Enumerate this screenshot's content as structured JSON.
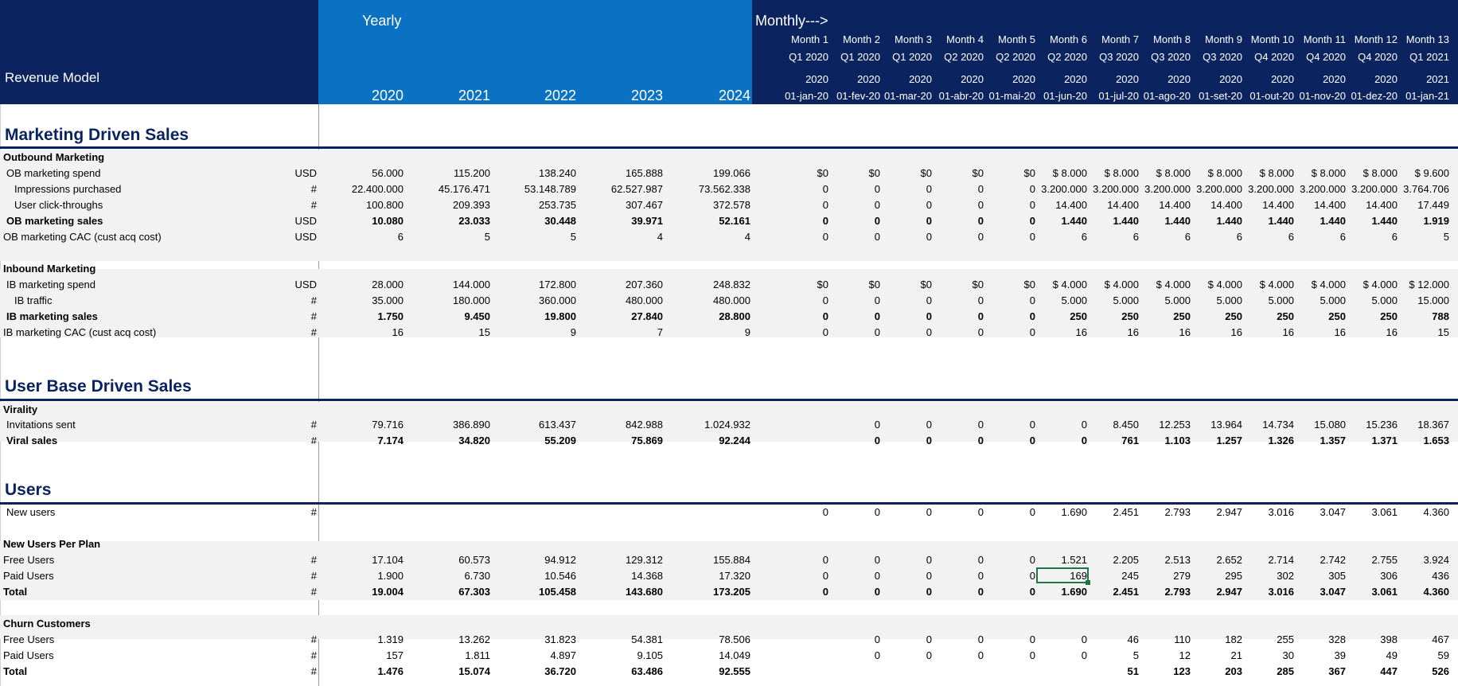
{
  "header": {
    "model_title": "Revenue Model",
    "yearly_label": "Yearly",
    "monthly_label": "Monthly--->",
    "years": [
      "2020",
      "2021",
      "2022",
      "2023",
      "2024"
    ],
    "months": [
      {
        "month": "Month 1",
        "quarter": "Q1 2020",
        "year": "2020",
        "date": "01-jan-20"
      },
      {
        "month": "Month 2",
        "quarter": "Q1 2020",
        "year": "2020",
        "date": "01-fev-20"
      },
      {
        "month": "Month 3",
        "quarter": "Q1 2020",
        "year": "2020",
        "date": "01-mar-20"
      },
      {
        "month": "Month 4",
        "quarter": "Q2 2020",
        "year": "2020",
        "date": "01-abr-20"
      },
      {
        "month": "Month 5",
        "quarter": "Q2 2020",
        "year": "2020",
        "date": "01-mai-20"
      },
      {
        "month": "Month 6",
        "quarter": "Q2 2020",
        "year": "2020",
        "date": "01-jun-20"
      },
      {
        "month": "Month 7",
        "quarter": "Q3 2020",
        "year": "2020",
        "date": "01-jul-20"
      },
      {
        "month": "Month 8",
        "quarter": "Q3 2020",
        "year": "2020",
        "date": "01-ago-20"
      },
      {
        "month": "Month 9",
        "quarter": "Q3 2020",
        "year": "2020",
        "date": "01-set-20"
      },
      {
        "month": "Month 10",
        "quarter": "Q4 2020",
        "year": "2020",
        "date": "01-out-20"
      },
      {
        "month": "Month 11",
        "quarter": "Q4 2020",
        "year": "2020",
        "date": "01-nov-20"
      },
      {
        "month": "Month 12",
        "quarter": "Q4 2020",
        "year": "2020",
        "date": "01-dez-20"
      },
      {
        "month": "Month 13",
        "quarter": "Q1 2021",
        "year": "2021",
        "date": "01-jan-21"
      }
    ]
  },
  "sections": [
    {
      "title": "Marketing Driven Sales"
    },
    {
      "title": "User Base Driven Sales"
    },
    {
      "title": "Users"
    }
  ],
  "subheads": [
    {
      "label": "Outbound Marketing"
    },
    {
      "label": "Inbound Marketing"
    },
    {
      "label": "Virality"
    },
    {
      "label": "New Users Per Plan"
    },
    {
      "label": "Churn Customers"
    }
  ],
  "rows": [
    {
      "label": "OB marketing spend",
      "unit": "USD",
      "bold": false,
      "indent": 8,
      "yearly": [
        "56.000",
        "115.200",
        "138.240",
        "165.888",
        "199.066"
      ],
      "monthly": [
        "$0",
        "$0",
        "$0",
        "$0",
        "$0",
        "$ 8.000",
        "$ 8.000",
        "$ 8.000",
        "$ 8.000",
        "$ 8.000",
        "$ 8.000",
        "$ 8.000",
        "$ 9.600"
      ]
    },
    {
      "label": "Impressions purchased",
      "unit": "#",
      "bold": false,
      "indent": 18,
      "yearly": [
        "22.400.000",
        "45.176.471",
        "53.148.789",
        "62.527.987",
        "73.562.338"
      ],
      "monthly": [
        "0",
        "0",
        "0",
        "0",
        "0",
        "3.200.000",
        "3.200.000",
        "3.200.000",
        "3.200.000",
        "3.200.000",
        "3.200.000",
        "3.200.000",
        "3.764.706"
      ]
    },
    {
      "label": "User click-throughs",
      "unit": "#",
      "bold": false,
      "indent": 18,
      "yearly": [
        "100.800",
        "209.393",
        "253.735",
        "307.467",
        "372.578"
      ],
      "monthly": [
        "0",
        "0",
        "0",
        "0",
        "0",
        "14.400",
        "14.400",
        "14.400",
        "14.400",
        "14.400",
        "14.400",
        "14.400",
        "17.449"
      ]
    },
    {
      "label": "OB marketing sales",
      "unit": "USD",
      "bold": true,
      "indent": 8,
      "yearly": [
        "10.080",
        "23.033",
        "30.448",
        "39.971",
        "52.161"
      ],
      "monthly": [
        "0",
        "0",
        "0",
        "0",
        "0",
        "1.440",
        "1.440",
        "1.440",
        "1.440",
        "1.440",
        "1.440",
        "1.440",
        "1.919"
      ]
    },
    {
      "label": "OB marketing CAC (cust acq cost)",
      "unit": "USD",
      "bold": false,
      "indent": 4,
      "yearly": [
        "6",
        "5",
        "5",
        "4",
        "4"
      ],
      "monthly": [
        "0",
        "0",
        "0",
        "0",
        "0",
        "6",
        "6",
        "6",
        "6",
        "6",
        "6",
        "6",
        "5"
      ]
    },
    {
      "label": "IB marketing spend",
      "unit": "USD",
      "bold": false,
      "indent": 8,
      "yearly": [
        "28.000",
        "144.000",
        "172.800",
        "207.360",
        "248.832"
      ],
      "monthly": [
        "$0",
        "$0",
        "$0",
        "$0",
        "$0",
        "$ 4.000",
        "$ 4.000",
        "$ 4.000",
        "$ 4.000",
        "$ 4.000",
        "$ 4.000",
        "$ 4.000",
        "$ 12.000"
      ]
    },
    {
      "label": "IB traffic",
      "unit": "#",
      "bold": false,
      "indent": 18,
      "yearly": [
        "35.000",
        "180.000",
        "360.000",
        "480.000",
        "480.000"
      ],
      "monthly": [
        "0",
        "0",
        "0",
        "0",
        "0",
        "5.000",
        "5.000",
        "5.000",
        "5.000",
        "5.000",
        "5.000",
        "5.000",
        "15.000"
      ]
    },
    {
      "label": "IB marketing sales",
      "unit": "#",
      "bold": true,
      "indent": 8,
      "yearly": [
        "1.750",
        "9.450",
        "19.800",
        "27.840",
        "28.800"
      ],
      "monthly": [
        "0",
        "0",
        "0",
        "0",
        "0",
        "250",
        "250",
        "250",
        "250",
        "250",
        "250",
        "250",
        "788"
      ]
    },
    {
      "label": "IB marketing CAC (cust acq cost)",
      "unit": "#",
      "bold": false,
      "indent": 4,
      "yearly": [
        "16",
        "15",
        "9",
        "7",
        "9"
      ],
      "monthly": [
        "0",
        "0",
        "0",
        "0",
        "0",
        "16",
        "16",
        "16",
        "16",
        "16",
        "16",
        "16",
        "15"
      ]
    },
    {
      "label": "Invitations sent",
      "unit": "#",
      "bold": false,
      "indent": 8,
      "yearly": [
        "79.716",
        "386.890",
        "613.437",
        "842.988",
        "1.024.932"
      ],
      "monthly": [
        "",
        "0",
        "0",
        "0",
        "0",
        "0",
        "8.450",
        "12.253",
        "13.964",
        "14.734",
        "15.080",
        "15.236",
        "18.367"
      ]
    },
    {
      "label": "Viral sales",
      "unit": "#",
      "bold": true,
      "indent": 8,
      "yearly": [
        "7.174",
        "34.820",
        "55.209",
        "75.869",
        "92.244"
      ],
      "monthly": [
        "",
        "0",
        "0",
        "0",
        "0",
        "0",
        "761",
        "1.103",
        "1.257",
        "1.326",
        "1.357",
        "1.371",
        "1.653"
      ]
    },
    {
      "label": "New users",
      "unit": "#",
      "bold": false,
      "indent": 8,
      "yearly": [
        "",
        "",
        "",
        "",
        ""
      ],
      "monthly": [
        "0",
        "0",
        "0",
        "0",
        "0",
        "1.690",
        "2.451",
        "2.793",
        "2.947",
        "3.016",
        "3.047",
        "3.061",
        "4.360"
      ]
    },
    {
      "label": "Free Users",
      "unit": "#",
      "bold": false,
      "indent": 4,
      "yearly": [
        "17.104",
        "60.573",
        "94.912",
        "129.312",
        "155.884"
      ],
      "monthly": [
        "0",
        "0",
        "0",
        "0",
        "0",
        "1.521",
        "2.205",
        "2.513",
        "2.652",
        "2.714",
        "2.742",
        "2.755",
        "3.924"
      ]
    },
    {
      "label": "Paid Users",
      "unit": "#",
      "bold": false,
      "indent": 4,
      "yearly": [
        "1.900",
        "6.730",
        "10.546",
        "14.368",
        "17.320"
      ],
      "monthly": [
        "0",
        "0",
        "0",
        "0",
        "0",
        "169",
        "245",
        "279",
        "295",
        "302",
        "305",
        "306",
        "436"
      ]
    },
    {
      "label": "Total",
      "unit": "#",
      "bold": true,
      "indent": 4,
      "yearly": [
        "19.004",
        "67.303",
        "105.458",
        "143.680",
        "173.205"
      ],
      "monthly": [
        "0",
        "0",
        "0",
        "0",
        "0",
        "1.690",
        "2.451",
        "2.793",
        "2.947",
        "3.016",
        "3.047",
        "3.061",
        "4.360"
      ]
    },
    {
      "label": "Free Users",
      "unit": "#",
      "bold": false,
      "indent": 4,
      "yearly": [
        "1.319",
        "13.262",
        "31.823",
        "54.381",
        "78.506"
      ],
      "monthly": [
        "",
        "0",
        "0",
        "0",
        "0",
        "0",
        "46",
        "110",
        "182",
        "255",
        "328",
        "398",
        "467"
      ]
    },
    {
      "label": "Paid Users",
      "unit": "#",
      "bold": false,
      "indent": 4,
      "yearly": [
        "157",
        "1.811",
        "4.897",
        "9.105",
        "14.049"
      ],
      "monthly": [
        "",
        "0",
        "0",
        "0",
        "0",
        "0",
        "5",
        "12",
        "21",
        "30",
        "39",
        "49",
        "59"
      ]
    },
    {
      "label": "Total",
      "unit": "#",
      "bold": true,
      "indent": 4,
      "yearly": [
        "1.476",
        "15.074",
        "36.720",
        "63.486",
        "92.555"
      ],
      "monthly": [
        "",
        "",
        "",
        "",
        "",
        "",
        "51",
        "123",
        "203",
        "285",
        "367",
        "447",
        "526"
      ]
    }
  ]
}
